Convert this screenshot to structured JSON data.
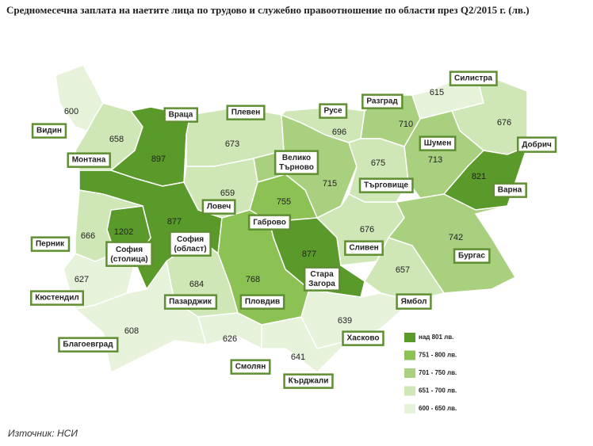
{
  "chart_data": {
    "type": "choropleth",
    "title": "Средномесечна заплата на наетите лица по трудово и служебно правоотношение по области през Q2/2015 г. (лв.)",
    "source": "Източник: НСИ",
    "regions": [
      {
        "name": "Видин",
        "value": 600
      },
      {
        "name": "Монтана",
        "value": 658
      },
      {
        "name": "Враца",
        "value": 897
      },
      {
        "name": "Плевен",
        "value": 673
      },
      {
        "name": "Ловеч",
        "value": 659
      },
      {
        "name": "Велико Търново",
        "value": 715
      },
      {
        "name": "Русе",
        "value": 696
      },
      {
        "name": "Разград",
        "value": 710
      },
      {
        "name": "Силистра",
        "value": 615
      },
      {
        "name": "Добрич",
        "value": 676
      },
      {
        "name": "Шумен",
        "value": 713
      },
      {
        "name": "Търговище",
        "value": 675
      },
      {
        "name": "Варна",
        "value": 821
      },
      {
        "name": "Габрово",
        "value": 755
      },
      {
        "name": "София (област)",
        "value": 877
      },
      {
        "name": "София (столица)",
        "value": 1202
      },
      {
        "name": "Перник",
        "value": 666
      },
      {
        "name": "Кюстендил",
        "value": 627
      },
      {
        "name": "Благоевград",
        "value": 608
      },
      {
        "name": "Пазарджик",
        "value": 684
      },
      {
        "name": "Пловдив",
        "value": 768
      },
      {
        "name": "Стара Загора",
        "value": 877
      },
      {
        "name": "Сливен",
        "value": 676
      },
      {
        "name": "Бургас",
        "value": 742
      },
      {
        "name": "Ямбол",
        "value": 657
      },
      {
        "name": "Хасково",
        "value": 639
      },
      {
        "name": "Смолян",
        "value": 626
      },
      {
        "name": "Кърджали",
        "value": 641
      }
    ],
    "legend": [
      {
        "label": "над 801 лв.",
        "min": 801,
        "color": "#5a9a2a"
      },
      {
        "label": "751 - 800 лв.",
        "min": 751,
        "color": "#8cc153"
      },
      {
        "label": "701 - 750 лв.",
        "min": 701,
        "color": "#a9d07f"
      },
      {
        "label": "651 - 700 лв.",
        "min": 651,
        "color": "#cfe6b6"
      },
      {
        "label": "600 - 650 лв.",
        "min": 600,
        "color": "#e7f2db"
      }
    ]
  }
}
